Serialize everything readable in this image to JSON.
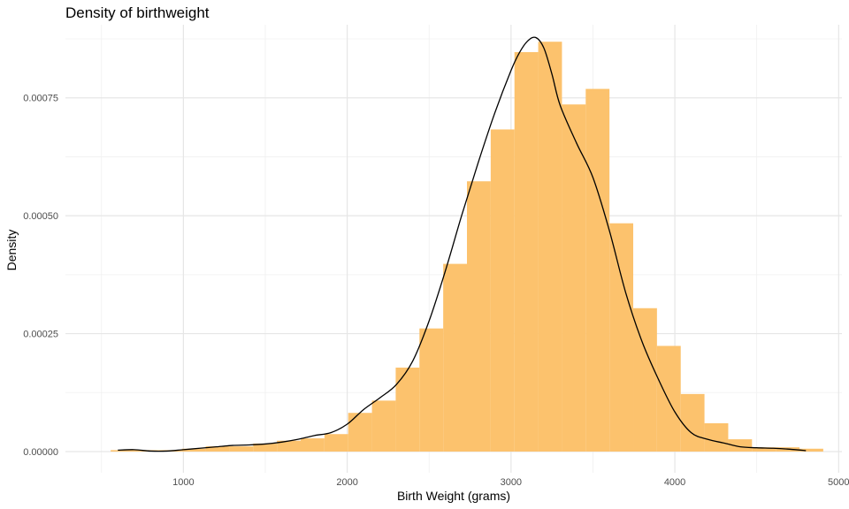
{
  "chart_data": {
    "type": "histogram",
    "title": "Density of birthweight",
    "xlabel": "Birth Weight (grams)",
    "ylabel": "Density",
    "xlim": [
      280,
      5020
    ],
    "ylim": [
      -4.5e-05,
      0.000905
    ],
    "x_ticks": [
      1000,
      2000,
      3000,
      4000,
      5000
    ],
    "x_tick_labels": [
      "1000",
      "2000",
      "3000",
      "4000",
      "5000"
    ],
    "y_ticks": [
      0,
      0.00025,
      0.0005,
      0.00075
    ],
    "y_tick_labels": [
      "0.00000",
      "0.00025",
      "0.00050",
      "0.00075"
    ],
    "grid": true,
    "bar_color": "#fcc16a",
    "line_color": "#000000",
    "bin_width": 145,
    "bins": [
      {
        "x0": 556,
        "x1": 701,
        "density": 3e-06
      },
      {
        "x0": 701,
        "x1": 846,
        "density": 3e-06
      },
      {
        "x0": 846,
        "x1": 991,
        "density": 3e-06
      },
      {
        "x0": 991,
        "x1": 1136,
        "density": 6e-06
      },
      {
        "x0": 1136,
        "x1": 1281,
        "density": 1.1e-05
      },
      {
        "x0": 1281,
        "x1": 1426,
        "density": 1.1e-05
      },
      {
        "x0": 1426,
        "x1": 1571,
        "density": 1.7e-05
      },
      {
        "x0": 1571,
        "x1": 1716,
        "density": 2.3e-05
      },
      {
        "x0": 1716,
        "x1": 1861,
        "density": 2.8e-05
      },
      {
        "x0": 1861,
        "x1": 2006,
        "density": 3.7e-05
      },
      {
        "x0": 2006,
        "x1": 2151,
        "density": 8.2e-05
      },
      {
        "x0": 2151,
        "x1": 2296,
        "density": 0.000108
      },
      {
        "x0": 2296,
        "x1": 2441,
        "density": 0.000178
      },
      {
        "x0": 2441,
        "x1": 2586,
        "density": 0.000261
      },
      {
        "x0": 2586,
        "x1": 2731,
        "density": 0.000398
      },
      {
        "x0": 2731,
        "x1": 2876,
        "density": 0.000573
      },
      {
        "x0": 2876,
        "x1": 3021,
        "density": 0.000683
      },
      {
        "x0": 3021,
        "x1": 3166,
        "density": 0.000847
      },
      {
        "x0": 3166,
        "x1": 3311,
        "density": 0.000869
      },
      {
        "x0": 3311,
        "x1": 3456,
        "density": 0.000736
      },
      {
        "x0": 3456,
        "x1": 3601,
        "density": 0.000769
      },
      {
        "x0": 3601,
        "x1": 3746,
        "density": 0.000484
      },
      {
        "x0": 3746,
        "x1": 3891,
        "density": 0.000304
      },
      {
        "x0": 3891,
        "x1": 4036,
        "density": 0.000224
      },
      {
        "x0": 4036,
        "x1": 4181,
        "density": 0.000122
      },
      {
        "x0": 4181,
        "x1": 4326,
        "density": 6e-05
      },
      {
        "x0": 4326,
        "x1": 4471,
        "density": 2.6e-05
      },
      {
        "x0": 4471,
        "x1": 4616,
        "density": 9e-06
      },
      {
        "x0": 4616,
        "x1": 4761,
        "density": 9e-06
      },
      {
        "x0": 4761,
        "x1": 4906,
        "density": 6e-06
      }
    ],
    "density_curve": {
      "x": [
        600,
        700,
        800,
        900,
        1000,
        1100,
        1200,
        1300,
        1400,
        1500,
        1600,
        1700,
        1800,
        1900,
        2000,
        2100,
        2200,
        2300,
        2400,
        2500,
        2600,
        2700,
        2800,
        2900,
        3000,
        3050,
        3100,
        3150,
        3200,
        3250,
        3300,
        3400,
        3500,
        3600,
        3700,
        3800,
        3900,
        4000,
        4100,
        4200,
        4300,
        4400,
        4500,
        4600,
        4700,
        4800
      ],
      "y": [
        3e-06,
        4e-06,
        1e-06,
        1e-06,
        4e-06,
        7e-06,
        1e-05,
        1.3e-05,
        1.4e-05,
        1.6e-05,
        2e-05,
        2.6e-05,
        3.4e-05,
        4e-05,
        5.8e-05,
        8.9e-05,
        0.000114,
        0.000142,
        0.000192,
        0.000277,
        0.000384,
        0.000502,
        0.000613,
        0.000717,
        0.000808,
        0.000845,
        0.00087,
        0.000878,
        0.000856,
        0.0008,
        0.000734,
        0.000654,
        0.000581,
        0.000469,
        0.000337,
        0.000233,
        0.000153,
        8.4e-05,
        4e-05,
        2.6e-05,
        1.8e-05,
        1e-05,
        8e-06,
        7e-06,
        5e-06,
        2e-06
      ]
    }
  }
}
